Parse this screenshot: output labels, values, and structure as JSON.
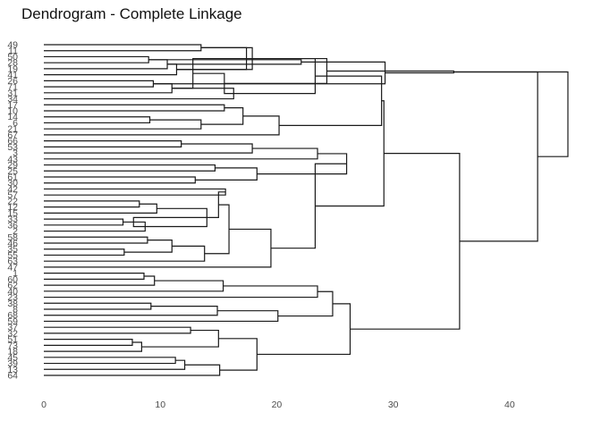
{
  "chart_data": {
    "type": "dendrogram",
    "title": "Dendrogram - Complete Linkage",
    "orientation": "horizontal",
    "xlabel": "",
    "ylabel": "",
    "xlim": [
      0,
      45
    ],
    "xticks": [
      0,
      10,
      20,
      30,
      40
    ],
    "leaf_labels_top_to_bottom": [
      "49",
      "11",
      "50",
      "28",
      "19",
      "41",
      "26",
      "71",
      "31",
      "34",
      "17",
      "10",
      "14",
      "6",
      "21",
      "67",
      "66",
      "53",
      "3",
      "43",
      "29",
      "25",
      "61",
      "30",
      "42",
      "57",
      "22",
      "12",
      "15",
      "33",
      "36",
      "2",
      "58",
      "46",
      "35",
      "55",
      "63",
      "47",
      "1",
      "60",
      "62",
      "40",
      "23",
      "38",
      "8",
      "68",
      "59",
      "37",
      "32",
      "51",
      "73",
      "18",
      "45",
      "39",
      "13",
      "64"
    ],
    "merges": [
      {
        "height": 13.5,
        "children": [
          "49",
          "11"
        ]
      },
      {
        "height": 9,
        "children": [
          "50",
          "28"
        ]
      },
      {
        "height": 10.6,
        "children": [
          "m1",
          "19"
        ]
      },
      {
        "height": 11.4,
        "children": [
          "m2",
          "41"
        ]
      },
      {
        "height": 17.9,
        "children": [
          "m0",
          "m3"
        ]
      },
      {
        "height": 9.4,
        "children": [
          "26",
          "71"
        ]
      },
      {
        "height": 11,
        "children": [
          "m5",
          "31"
        ]
      },
      {
        "height": 16.3,
        "children": [
          "m6",
          "34"
        ]
      },
      {
        "height": 23.3,
        "children": [
          "m4",
          "m7"
        ]
      },
      {
        "height": 15.5,
        "children": [
          "17",
          "10"
        ]
      },
      {
        "height": 9.1,
        "children": [
          "14",
          "6"
        ]
      },
      {
        "height": 13.5,
        "children": [
          "m10",
          "21"
        ]
      },
      {
        "height": 17.1,
        "children": [
          "m9",
          "m11"
        ]
      },
      {
        "height": 20.2,
        "children": [
          "m12",
          "67"
        ]
      },
      {
        "height": 29,
        "children": [
          "m8",
          "m13"
        ]
      },
      {
        "height": 11.8,
        "children": [
          "66",
          "53"
        ]
      },
      {
        "height": 17.9,
        "children": [
          "m15",
          "3"
        ]
      },
      {
        "height": 23.5,
        "children": [
          "m16",
          "43"
        ]
      },
      {
        "height": 14.7,
        "children": [
          "29",
          "25"
        ]
      },
      {
        "height": 13,
        "children": [
          "61",
          "30"
        ]
      },
      {
        "height": 18.3,
        "children": [
          "m18",
          "m19"
        ]
      },
      {
        "height": 26,
        "children": [
          "m17",
          "m20"
        ]
      },
      {
        "height": 15.6,
        "children": [
          "42",
          "57"
        ]
      },
      {
        "height": 8.2,
        "children": [
          "22",
          "12"
        ]
      },
      {
        "height": 9.7,
        "children": [
          "m23",
          "15"
        ]
      },
      {
        "height": 6.8,
        "children": [
          "33",
          "36"
        ]
      },
      {
        "height": 8.7,
        "children": [
          "m25",
          "2"
        ]
      },
      {
        "height": 14,
        "children": [
          "m24",
          "m26"
        ]
      },
      {
        "height": 15,
        "children": [
          "m22",
          "m27"
        ]
      },
      {
        "height": 8.9,
        "children": [
          "58",
          "46"
        ]
      },
      {
        "height": 6.9,
        "children": [
          "35",
          "55"
        ]
      },
      {
        "height": 11,
        "children": [
          "m29",
          "m30"
        ]
      },
      {
        "height": 13.8,
        "children": [
          "m31",
          "63"
        ]
      },
      {
        "height": 15.9,
        "children": [
          "m28",
          "m32"
        ]
      },
      {
        "height": 19.5,
        "children": [
          "m33",
          "47"
        ]
      },
      {
        "height": 23.3,
        "children": [
          "m21",
          "m34"
        ]
      },
      {
        "height": 29.2,
        "children": [
          "m14",
          "m35"
        ]
      },
      {
        "height": 8.6,
        "children": [
          "1",
          "60"
        ]
      },
      {
        "height": 9.5,
        "children": [
          "m37",
          "62"
        ]
      },
      {
        "height": 15.4,
        "children": [
          "m38",
          "40"
        ]
      },
      {
        "height": 23.5,
        "children": [
          "m39",
          "23"
        ]
      },
      {
        "height": 9.2,
        "children": [
          "38",
          "8"
        ]
      },
      {
        "height": 14.9,
        "children": [
          "m41",
          "68"
        ]
      },
      {
        "height": 20.1,
        "children": [
          "m42",
          "59"
        ]
      },
      {
        "height": 24.8,
        "children": [
          "m40",
          "m43"
        ]
      },
      {
        "height": 12.6,
        "children": [
          "37",
          "32"
        ]
      },
      {
        "height": 7.6,
        "children": [
          "51",
          "73"
        ]
      },
      {
        "height": 8.4,
        "children": [
          "m46",
          "18"
        ]
      },
      {
        "height": 15,
        "children": [
          "m45",
          "m47"
        ]
      },
      {
        "height": 11.3,
        "children": [
          "45",
          "39"
        ]
      },
      {
        "height": 12.1,
        "children": [
          "m49",
          "13"
        ]
      },
      {
        "height": 15.1,
        "children": [
          "m50",
          "64"
        ]
      },
      {
        "height": 18.3,
        "children": [
          "m48",
          "m51"
        ]
      },
      {
        "height": 26.3,
        "children": [
          "m44",
          "m52"
        ]
      },
      {
        "height": 7.7,
        "children": [
          "m27",
          "m26"
        ]
      },
      {
        "height": 35.7,
        "children": [
          "m36",
          "m53"
        ]
      },
      {
        "height": 22.1,
        "children": [
          "m1",
          "m2"
        ]
      },
      {
        "height": 29.3,
        "children": [
          "m56",
          "m5"
        ]
      },
      {
        "height": 17.4,
        "children": [
          "m0",
          "m3"
        ]
      },
      {
        "height": 12.8,
        "children": [
          "m4",
          "m6"
        ]
      },
      {
        "height": 15.5,
        "children": [
          "m59",
          "m7"
        ]
      },
      {
        "height": 24.3,
        "children": [
          "m58",
          "m60"
        ]
      },
      {
        "height": 35.2,
        "children": [
          "m57",
          "m61"
        ]
      },
      {
        "height": 42.4,
        "children": [
          "m55",
          "m62"
        ]
      },
      {
        "height": 45,
        "children": [
          "m63",
          "m62"
        ]
      }
    ]
  }
}
